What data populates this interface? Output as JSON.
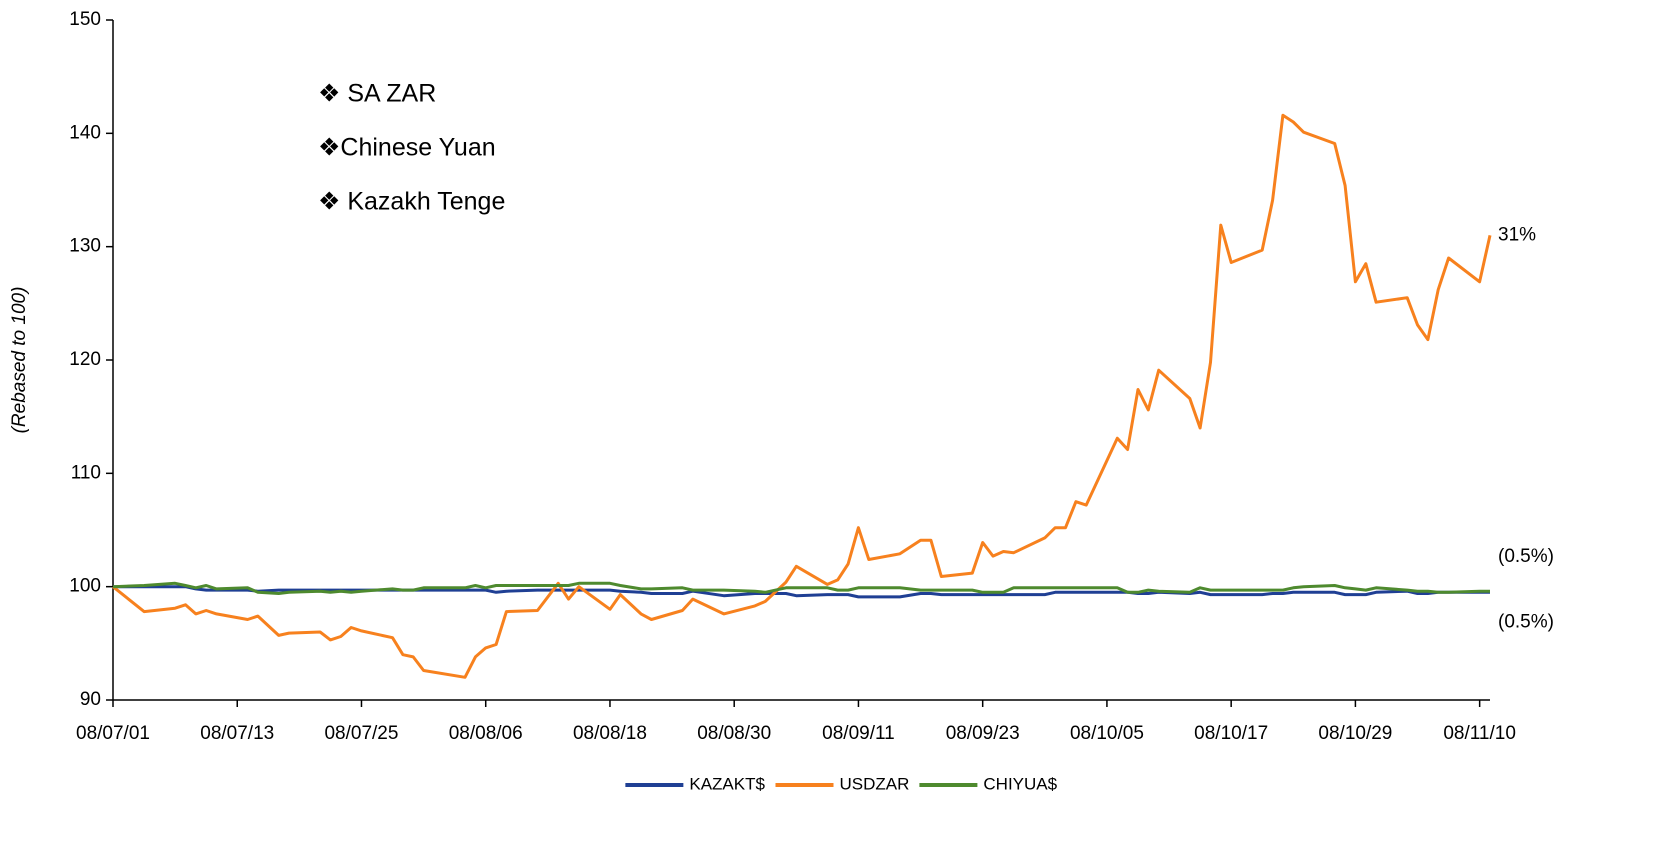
{
  "chart_data": {
    "type": "line",
    "y_label": "(Rebased to 100)",
    "x": [
      "08/07/01",
      "08/07/04",
      "08/07/07",
      "08/07/08",
      "08/07/09",
      "08/07/10",
      "08/07/11",
      "08/07/14",
      "08/07/15",
      "08/07/17",
      "08/07/18",
      "08/07/21",
      "08/07/22",
      "08/07/23",
      "08/07/24",
      "08/07/25",
      "08/07/28",
      "08/07/29",
      "08/07/30",
      "08/07/31",
      "08/08/04",
      "08/08/05",
      "08/08/06",
      "08/08/07",
      "08/08/08",
      "08/08/11",
      "08/08/13",
      "08/08/14",
      "08/08/15",
      "08/08/18",
      "08/08/19",
      "08/08/21",
      "08/08/22",
      "08/08/25",
      "08/08/26",
      "08/08/29",
      "08/09/01",
      "08/09/02",
      "08/09/04",
      "08/09/05",
      "08/09/08",
      "08/09/09",
      "08/09/10",
      "08/09/11",
      "08/09/12",
      "08/09/15",
      "08/09/17",
      "08/09/18",
      "08/09/19",
      "08/09/22",
      "08/09/23",
      "08/09/24",
      "08/09/25",
      "08/09/26",
      "08/09/29",
      "08/09/30",
      "08/10/01",
      "08/10/02",
      "08/10/03",
      "08/10/06",
      "08/10/07",
      "08/10/08",
      "08/10/09",
      "08/10/10",
      "08/10/13",
      "08/10/14",
      "08/10/15",
      "08/10/16",
      "08/10/17",
      "08/10/20",
      "08/10/21",
      "08/10/22",
      "08/10/23",
      "08/10/24",
      "08/10/27",
      "08/10/28",
      "08/10/29",
      "08/10/30",
      "08/10/31",
      "08/11/03",
      "08/11/04",
      "08/11/05",
      "08/11/06",
      "08/11/07",
      "08/11/10",
      "08/11/11"
    ],
    "series": [
      {
        "name": "KAZAKT$",
        "color": "#1f3f94",
        "end_label": "(0.5%)",
        "values": [
          100,
          100,
          100,
          100,
          99.8,
          99.7,
          99.7,
          99.7,
          99.6,
          99.7,
          99.7,
          99.7,
          99.7,
          99.7,
          99.7,
          99.7,
          99.7,
          99.7,
          99.7,
          99.7,
          99.7,
          99.7,
          99.7,
          99.5,
          99.6,
          99.7,
          99.7,
          99.7,
          99.7,
          99.7,
          99.6,
          99.5,
          99.4,
          99.4,
          99.6,
          99.2,
          99.4,
          99.4,
          99.4,
          99.2,
          99.3,
          99.3,
          99.3,
          99.1,
          99.1,
          99.1,
          99.4,
          99.4,
          99.3,
          99.3,
          99.3,
          99.3,
          99.3,
          99.3,
          99.3,
          99.5,
          99.5,
          99.5,
          99.5,
          99.5,
          99.5,
          99.4,
          99.4,
          99.5,
          99.4,
          99.5,
          99.3,
          99.3,
          99.3,
          99.3,
          99.4,
          99.4,
          99.5,
          99.5,
          99.5,
          99.3,
          99.3,
          99.3,
          99.5,
          99.6,
          99.4,
          99.4,
          99.5,
          99.5,
          99.5,
          99.5
        ]
      },
      {
        "name": "USDZAR",
        "color": "#f7811e",
        "end_label": "31%",
        "values": [
          100,
          97.8,
          98.1,
          98.4,
          97.6,
          97.9,
          97.6,
          97.1,
          97.4,
          95.7,
          95.9,
          96,
          95.3,
          95.6,
          96.4,
          96.1,
          95.5,
          94,
          93.8,
          92.6,
          92,
          93.8,
          94.6,
          94.9,
          97.8,
          97.9,
          100.3,
          98.9,
          100,
          98,
          99.3,
          97.6,
          97.1,
          97.9,
          98.9,
          97.6,
          98.3,
          98.7,
          100.4,
          101.8,
          100.2,
          100.6,
          102,
          105.2,
          102.4,
          102.9,
          104.1,
          104.1,
          100.9,
          101.2,
          103.9,
          102.7,
          103.1,
          103,
          104.3,
          105.2,
          105.2,
          107.5,
          107.2,
          113.1,
          112.1,
          117.4,
          115.6,
          119.1,
          116.6,
          114,
          119.8,
          131.9,
          128.6,
          129.7,
          134.1,
          141.6,
          141,
          140.1,
          139.1,
          135.4,
          126.9,
          128.5,
          125.1,
          125.5,
          123.1,
          121.8,
          126.2,
          129,
          126.9,
          131
        ]
      },
      {
        "name": "CHIYUA$",
        "color": "#4e8a2e",
        "end_label": "(0.5%)",
        "end_label_color": "#8fbf7a",
        "values": [
          100,
          100.1,
          100.3,
          100.1,
          99.9,
          100.1,
          99.8,
          99.9,
          99.5,
          99.4,
          99.5,
          99.6,
          99.5,
          99.6,
          99.5,
          99.6,
          99.8,
          99.7,
          99.7,
          99.9,
          99.9,
          100.1,
          99.9,
          100.1,
          100.1,
          100.1,
          100.1,
          100.1,
          100.3,
          100.3,
          100.1,
          99.8,
          99.8,
          99.9,
          99.7,
          99.7,
          99.6,
          99.5,
          99.9,
          99.9,
          99.9,
          99.7,
          99.7,
          99.9,
          99.9,
          99.9,
          99.7,
          99.7,
          99.7,
          99.7,
          99.5,
          99.5,
          99.5,
          99.9,
          99.9,
          99.9,
          99.9,
          99.9,
          99.9,
          99.9,
          99.5,
          99.5,
          99.7,
          99.6,
          99.5,
          99.9,
          99.7,
          99.7,
          99.7,
          99.7,
          99.7,
          99.7,
          99.9,
          100,
          100.1,
          99.9,
          99.8,
          99.7,
          99.9,
          99.7,
          99.6,
          99.6,
          99.5,
          99.5,
          99.6,
          99.6
        ]
      }
    ],
    "annotations": [
      {
        "text": "❖ SA ZAR",
        "color": "#f7811e"
      },
      {
        "text": "❖Chinese Yuan",
        "color": "#2faa2f"
      },
      {
        "text": "❖ Kazakh Tenge",
        "color": "#1a1ae6"
      }
    ],
    "xlim": [
      "08/07/01",
      "08/11/11"
    ],
    "xticks": [
      "08/07/01",
      "08/07/13",
      "08/07/25",
      "08/08/06",
      "08/08/18",
      "08/08/30",
      "08/09/11",
      "08/09/23",
      "08/10/05",
      "08/10/17",
      "08/10/29",
      "08/11/10"
    ],
    "ylim": [
      90,
      150
    ],
    "yticks": [
      90,
      100,
      110,
      120,
      130,
      140,
      150
    ],
    "grid": false,
    "legend": "bottom"
  }
}
